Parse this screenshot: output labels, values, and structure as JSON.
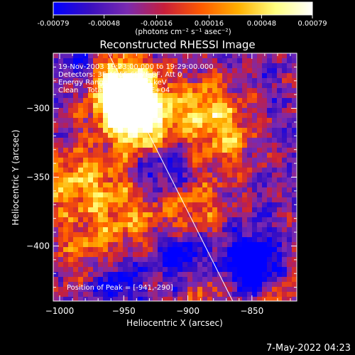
{
  "chart_data": {
    "type": "heatmap",
    "title": "Reconstructed RHESSI Image",
    "xlabel": "Heliocentric X (arcsec)",
    "ylabel": "Heliocentric Y (arcsec)",
    "xlim": [
      -1005,
      -815
    ],
    "ylim": [
      -440,
      -260
    ],
    "x_ticks": [
      -1000,
      -950,
      -900,
      -850
    ],
    "y_ticks": [
      -300,
      -350,
      -400
    ],
    "colorbar": {
      "range": [
        -0.00079,
        0.00079
      ],
      "ticks": [
        -0.00079,
        -0.00048,
        -0.00016,
        0.00016,
        0.00048,
        0.00079
      ],
      "tick_labels": [
        "-0.00079",
        "-0.00048",
        "-0.00016",
        "0.00016",
        "0.00048",
        "0.00079"
      ],
      "units": "(photons cm⁻² s⁻¹ asec⁻²)",
      "colormap": [
        "#0000ff",
        "#3a0fc0",
        "#7a2ab0",
        "#c81e3a",
        "#ff5a00",
        "#ffb000",
        "#ffff80",
        "#ffffff"
      ]
    },
    "annotations": [
      "19-Nov-2003 19:23:00.000 to 19:29:00.000",
      "Detectors: 3F 4F 5F 6F 7F 8F, Att 0",
      "Energy Range: 25.0 - 50.0 keV",
      "Clean    Total counts: 2.44E+04"
    ],
    "peak_label": "Position of Peak = [-941,-290]",
    "peak": [
      -941,
      -290
    ],
    "limb_line": [
      [
        -962,
        -260
      ],
      [
        -865,
        -440
      ]
    ],
    "hot_spots": [
      {
        "x": -945,
        "y": -292,
        "intensity": 1.0
      },
      {
        "x": -935,
        "y": -310,
        "intensity": 0.75
      },
      {
        "x": -960,
        "y": -278,
        "intensity": 0.55
      },
      {
        "x": -885,
        "y": -300,
        "intensity": 0.55
      },
      {
        "x": -870,
        "y": -325,
        "intensity": 0.4
      },
      {
        "x": -995,
        "y": -355,
        "intensity": 0.45
      },
      {
        "x": -895,
        "y": -375,
        "intensity": 0.45
      },
      {
        "x": -960,
        "y": -355,
        "intensity": 0.35
      },
      {
        "x": -975,
        "y": -400,
        "intensity": 0.35
      },
      {
        "x": -940,
        "y": -385,
        "intensity": 0.3
      },
      {
        "x": -830,
        "y": -430,
        "intensity": 0.35
      },
      {
        "x": -880,
        "y": -430,
        "intensity": 0.25
      }
    ],
    "cold_spots": [
      {
        "x": -850,
        "y": -415,
        "intensity": -0.9
      },
      {
        "x": -905,
        "y": -405,
        "intensity": -0.6
      },
      {
        "x": -980,
        "y": -270,
        "intensity": -0.5
      },
      {
        "x": -955,
        "y": -425,
        "intensity": -0.45
      },
      {
        "x": -925,
        "y": -345,
        "intensity": -0.4
      }
    ]
  },
  "footer": {
    "date": "7-May-2022 04:23"
  }
}
